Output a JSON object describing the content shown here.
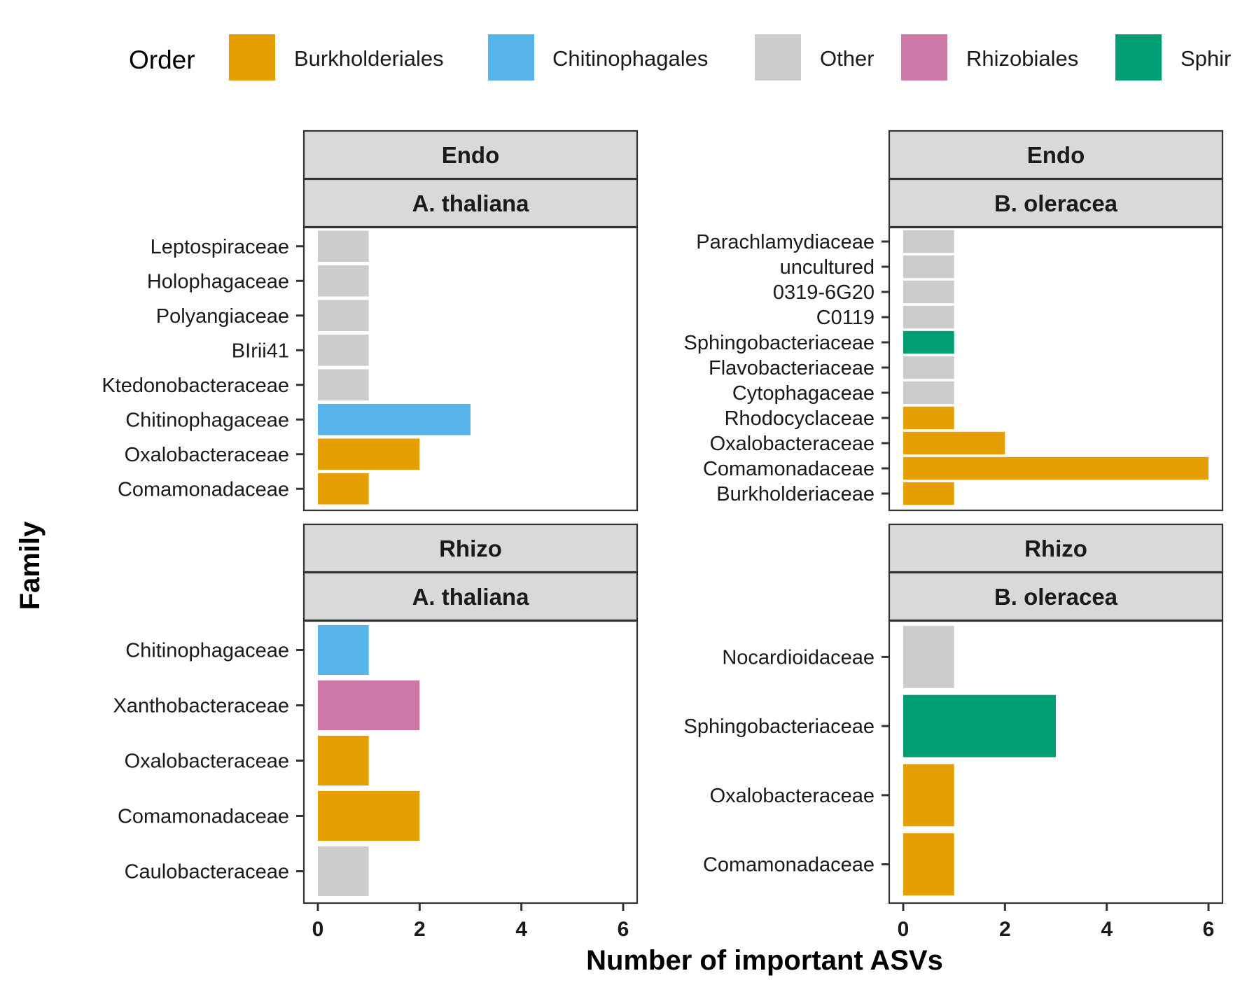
{
  "chart_data": {
    "type": "bar",
    "orientation": "horizontal",
    "xlabel": "Number of important ASVs",
    "ylabel": "Family",
    "xlim": [
      0,
      6
    ],
    "x_ticks": [
      0,
      2,
      4,
      6
    ],
    "grid": false,
    "legend": {
      "title": "Order",
      "placement": "top",
      "entries": [
        {
          "name": "Burkholderiales",
          "color": "#E69F00"
        },
        {
          "name": "Chitinophagales",
          "color": "#56B4E9"
        },
        {
          "name": "Other",
          "color": "#CCCCCC"
        },
        {
          "name": "Rhizobiales",
          "color": "#CC79A7"
        },
        {
          "name": "Sphir",
          "color": "#009E73"
        }
      ]
    },
    "panels": [
      {
        "strip_top": "Endo",
        "strip_bottom": "A. thaliana",
        "categories": [
          "Leptospiraceae",
          "Holophagaceae",
          "Polyangiaceae",
          "BIrii41",
          "Ktedonobacteraceae",
          "Chitinophagaceae",
          "Oxalobacteraceae",
          "Comamonadaceae"
        ],
        "values": [
          1,
          1,
          1,
          1,
          1,
          3,
          2,
          1
        ],
        "order": [
          "Other",
          "Other",
          "Other",
          "Other",
          "Other",
          "Chitinophagales",
          "Burkholderiales",
          "Burkholderiales"
        ]
      },
      {
        "strip_top": "Endo",
        "strip_bottom": "B. oleracea",
        "categories": [
          "Parachlamydiaceae",
          "uncultured",
          "0319-6G20",
          "C0119",
          "Sphingobacteriaceae",
          "Flavobacteriaceae",
          "Cytophagaceae",
          "Rhodocyclaceae",
          "Oxalobacteraceae",
          "Comamonadaceae",
          "Burkholderiaceae"
        ],
        "values": [
          1,
          1,
          1,
          1,
          1,
          1,
          1,
          1,
          2,
          6,
          1
        ],
        "order": [
          "Other",
          "Other",
          "Other",
          "Other",
          "Sphingobacteriales",
          "Other",
          "Other",
          "Burkholderiales",
          "Burkholderiales",
          "Burkholderiales",
          "Burkholderiales"
        ]
      },
      {
        "strip_top": "Rhizo",
        "strip_bottom": "A. thaliana",
        "categories": [
          "Chitinophagaceae",
          "Xanthobacteraceae",
          "Oxalobacteraceae",
          "Comamonadaceae",
          "Caulobacteraceae"
        ],
        "values": [
          1,
          2,
          1,
          2,
          1
        ],
        "order": [
          "Chitinophagales",
          "Rhizobiales",
          "Burkholderiales",
          "Burkholderiales",
          "Other"
        ]
      },
      {
        "strip_top": "Rhizo",
        "strip_bottom": "B. oleracea",
        "categories": [
          "Nocardioidaceae",
          "Sphingobacteriaceae",
          "Oxalobacteraceae",
          "Comamonadaceae"
        ],
        "values": [
          1,
          3,
          1,
          1
        ],
        "order": [
          "Other",
          "Sphingobacteriales",
          "Burkholderiales",
          "Burkholderiales"
        ]
      }
    ]
  },
  "colors": {
    "Burkholderiales": "#E69F00",
    "Chitinophagales": "#56B4E9",
    "Other": "#CCCCCC",
    "Rhizobiales": "#CC79A7",
    "Sphingobacteriales": "#009E73"
  }
}
